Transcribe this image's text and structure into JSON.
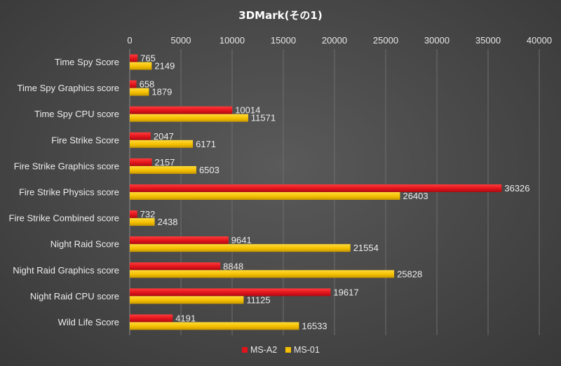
{
  "chart_data": {
    "type": "bar",
    "orientation": "horizontal",
    "title": "3DMark(その1)",
    "xlabel": "",
    "ylabel": "",
    "xlim": [
      0,
      40000
    ],
    "ticks": [
      0,
      5000,
      10000,
      15000,
      20000,
      25000,
      30000,
      35000,
      40000
    ],
    "grid": true,
    "legend_position": "bottom",
    "categories": [
      "Time Spy Score",
      "Time Spy Graphics score",
      "Time Spy CPU score",
      "Fire Strike Score",
      "Fire Strike Graphics score",
      "Fire Strike Physics score",
      "Fire Strike Combined score",
      "Night Raid Score",
      "Night Raid Graphics score",
      "Night Raid CPU score",
      "Wild Life Score"
    ],
    "series": [
      {
        "name": "MS-A2",
        "color": "#e0141b",
        "values": [
          765,
          658,
          10014,
          2047,
          2157,
          36326,
          732,
          9641,
          8848,
          19617,
          4191
        ]
      },
      {
        "name": "MS-01",
        "color": "#f4c000",
        "values": [
          2149,
          1879,
          11571,
          6171,
          6503,
          26403,
          2438,
          21554,
          25828,
          11125,
          16533
        ]
      }
    ]
  }
}
